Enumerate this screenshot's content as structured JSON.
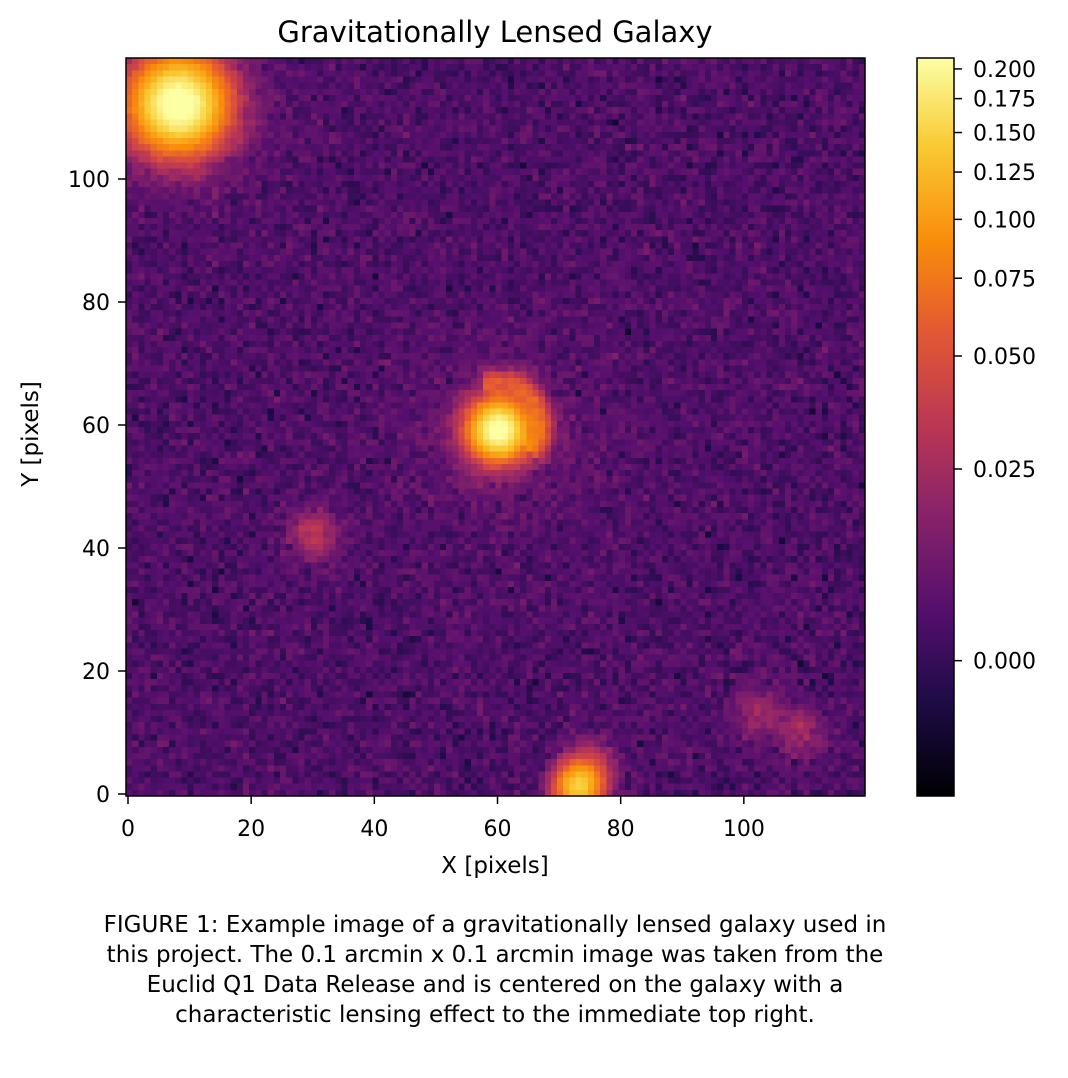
{
  "chart_data": {
    "type": "heatmap",
    "title": "Gravitationally Lensed Galaxy",
    "xlabel": "X [pixels]",
    "ylabel": "Y [pixels]",
    "xlim": [
      0,
      120
    ],
    "ylim": [
      0,
      120
    ],
    "xticks": [
      0,
      20,
      40,
      60,
      80,
      100
    ],
    "yticks": [
      0,
      20,
      40,
      60,
      80,
      100
    ],
    "colormap": "inferno",
    "colorbar": {
      "scale": "asinh-stretch",
      "range": [
        -0.012,
        0.21
      ],
      "ticks": [
        0.0,
        0.025,
        0.05,
        0.075,
        0.1,
        0.125,
        0.15,
        0.175,
        0.2
      ],
      "tick_labels": [
        "0.000",
        "0.025",
        "0.050",
        "0.075",
        "0.100",
        "0.125",
        "0.150",
        "0.175",
        "0.200"
      ]
    },
    "image_size": [
      120,
      120
    ],
    "background_level": 0.004,
    "sources": [
      {
        "x": 8,
        "y": 112,
        "peak": 0.21
      },
      {
        "x": 60,
        "y": 59,
        "peak": 0.2
      },
      {
        "x": 30,
        "y": 42,
        "peak": 0.03
      },
      {
        "x": 73,
        "y": 1,
        "peak": 0.14
      },
      {
        "x": 75,
        "y": 5,
        "peak": 0.025
      },
      {
        "x": 102,
        "y": 13,
        "peak": 0.02
      },
      {
        "x": 109,
        "y": 10,
        "peak": 0.02
      }
    ],
    "lensing_arc": {
      "center_x": 60,
      "center_y": 60,
      "radius": 7,
      "from_deg": -45,
      "to_deg": 110,
      "peak": 0.04
    }
  },
  "caption": "FIGURE 1: Example image of a gravitationally lensed galaxy used in\nthis project. The 0.1 arcmin x 0.1 arcmin image was taken from the\nEuclid Q1 Data Release and is centered on the galaxy with a\ncharacteristic lensing effect to the immediate top right."
}
